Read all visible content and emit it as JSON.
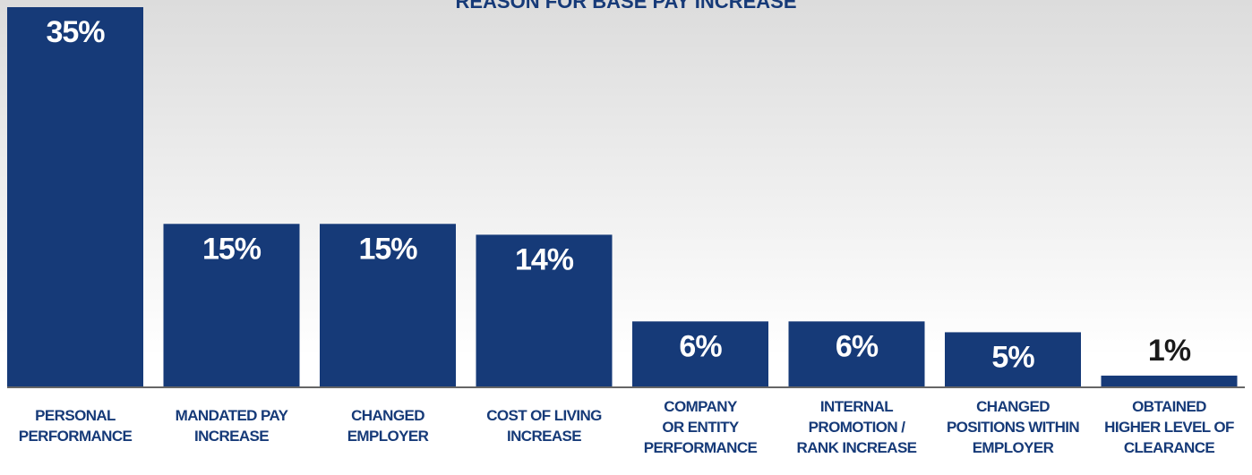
{
  "chart_data": {
    "type": "bar",
    "title": "REASON FOR BASE PAY INCREASE",
    "categories": [
      "PERSONAL\nPERFORMANCE",
      "MANDATED PAY\nINCREASE",
      "CHANGED\nEMPLOYER",
      "COST OF LIVING\nINCREASE",
      "COMPANY\nOR ENTITY\nPERFORMANCE",
      "INTERNAL\nPROMOTION /\nRANK INCREASE",
      "CHANGED\nPOSITIONS WITHIN\nEMPLOYER",
      "OBTAINED\nHIGHER LEVEL OF\nCLEARANCE"
    ],
    "values": [
      35,
      15,
      15,
      14,
      6,
      6,
      5,
      1
    ],
    "value_labels": [
      "35%",
      "15%",
      "15%",
      "14%",
      "6%",
      "6%",
      "5%",
      "1%"
    ],
    "color": "#163a78",
    "ylim": [
      0,
      35
    ]
  }
}
